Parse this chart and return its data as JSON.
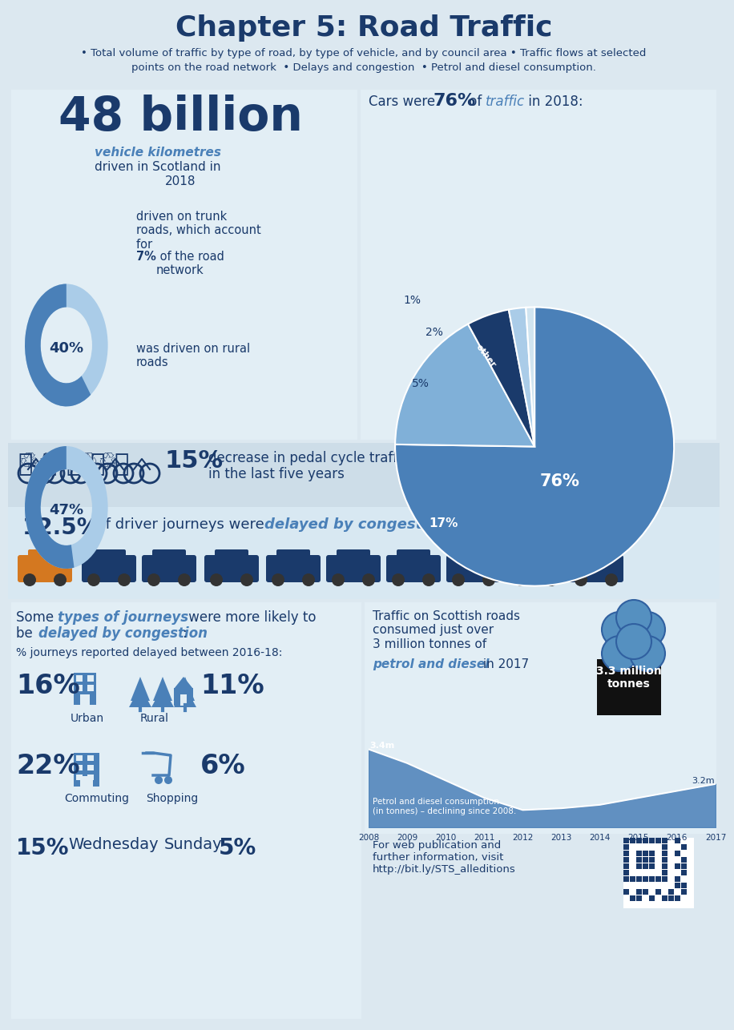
{
  "title": "Chapter 5: Road Traffic",
  "subtitle_line1": "• Total volume of traffic by type of road, by type of vehicle, and by council area • Traffic flows at selected",
  "subtitle_line2": "points on the road network  • Delays and congestion  • Petrol and diesel consumption.",
  "bg_color": "#dce8f0",
  "panel1_color": "#e2eef5",
  "panel2_color": "#cddde8",
  "panel3_color": "#d8e8f2",
  "title_color": "#1a3a6b",
  "dark_blue": "#1a3a6b",
  "mid_blue": "#4a80b8",
  "light_blue": "#80b0d8",
  "lighter_blue": "#aacce8",
  "orange": "#d47820",
  "pie_colors": [
    "#4a80b8",
    "#80b0d8",
    "#aacce8",
    "#1a3a6b",
    "#c0d8ec"
  ],
  "pie_values": [
    76,
    17,
    5,
    2,
    1
  ],
  "chart_vals": [
    3.4,
    3.32,
    3.22,
    3.12,
    3.05,
    3.06,
    3.08,
    3.12,
    3.16,
    3.2
  ],
  "chart_years": [
    "2008",
    "2009",
    "2010",
    "2011",
    "2012",
    "2013",
    "2014",
    "2015",
    "2016",
    "2017"
  ],
  "web_text": "For web publication and\nfurther information, visit\nhttp://bit.ly/STS_alleditions"
}
